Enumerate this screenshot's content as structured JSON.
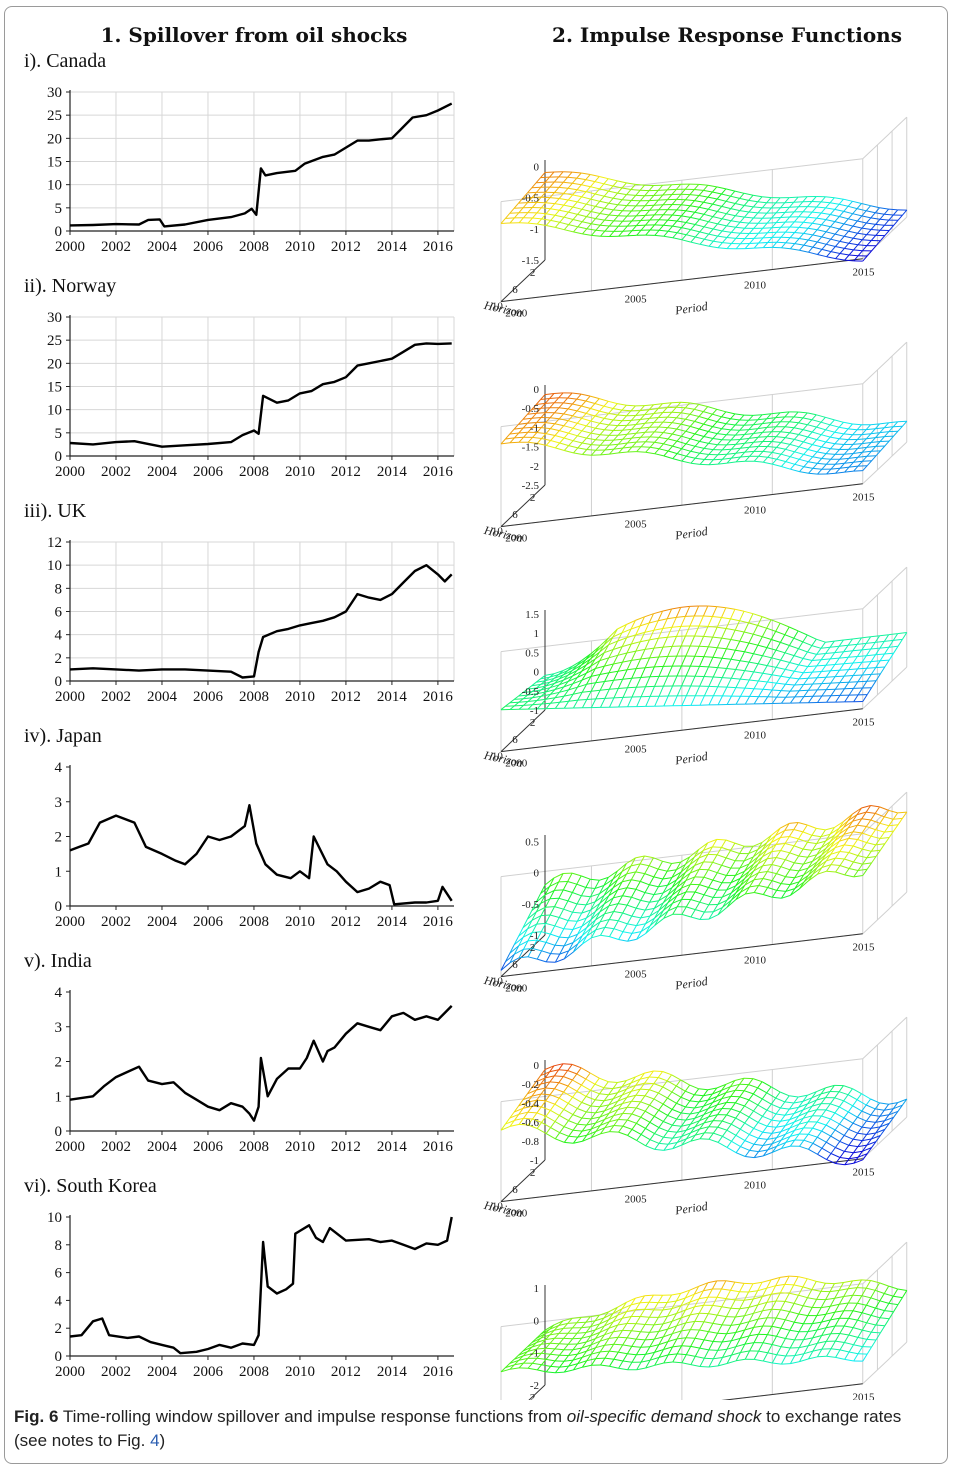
{
  "columns": {
    "left_title": "1. Spillover from oil shocks",
    "right_title": "2. Impulse Response Functions"
  },
  "caption": {
    "label": "Fig. 6",
    "text_before": "Time-rolling window spillover and impulse response functions from ",
    "emphasis": "oil-specific demand shock",
    "text_middle": " to exchange rates (see notes to Fig. ",
    "ref": "4",
    "text_after": ")"
  },
  "surface_axes": {
    "horizon_label": "Horizon",
    "period_label": "Period",
    "horizon_ticks": [
      "2",
      "6",
      "10"
    ],
    "period_ticks": [
      "2000",
      "2005",
      "2010",
      "2015"
    ]
  },
  "chart_data": [
    {
      "type": "line",
      "panel": "i). Canada",
      "x_ticks": [
        "2000",
        "2002",
        "2004",
        "2006",
        "2008",
        "2010",
        "2012",
        "2014",
        "2016"
      ],
      "xlim": [
        2000,
        2016.7
      ],
      "ylim": [
        0,
        30
      ],
      "yticks": [
        0,
        5,
        10,
        15,
        20,
        25,
        30
      ],
      "grid": true,
      "x": [
        2000,
        2001,
        2002,
        2003,
        2003.4,
        2003.9,
        2004.1,
        2005,
        2006,
        2007,
        2007.6,
        2007.9,
        2008.1,
        2008.3,
        2008.5,
        2009,
        2009.8,
        2010.2,
        2011,
        2011.5,
        2012,
        2012.5,
        2013,
        2013.5,
        2014,
        2014.4,
        2014.9,
        2015.5,
        2016,
        2016.6
      ],
      "y": [
        1.2,
        1.3,
        1.5,
        1.4,
        2.4,
        2.5,
        1.0,
        1.4,
        2.4,
        3.0,
        3.8,
        4.8,
        3.5,
        13.5,
        12.0,
        12.5,
        13.0,
        14.5,
        16.0,
        16.5,
        18.0,
        19.5,
        19.5,
        19.8,
        20.0,
        22.0,
        24.5,
        25.0,
        26.0,
        27.5
      ]
    },
    {
      "type": "line",
      "panel": "ii). Norway",
      "x_ticks": [
        "2000",
        "2002",
        "2004",
        "2006",
        "2008",
        "2010",
        "2012",
        "2014",
        "2016"
      ],
      "xlim": [
        2000,
        2016.7
      ],
      "ylim": [
        0,
        30
      ],
      "yticks": [
        0,
        5,
        10,
        15,
        20,
        25,
        30
      ],
      "grid": true,
      "x": [
        2000,
        2001,
        2002,
        2002.8,
        2003.5,
        2004,
        2005,
        2006,
        2007,
        2007.5,
        2008,
        2008.2,
        2008.4,
        2009,
        2009.5,
        2010,
        2010.5,
        2011,
        2011.5,
        2012,
        2012.5,
        2013,
        2013.5,
        2014,
        2014.5,
        2015,
        2015.5,
        2016,
        2016.6
      ],
      "y": [
        2.8,
        2.5,
        3.0,
        3.2,
        2.5,
        2.0,
        2.3,
        2.6,
        3.0,
        4.5,
        5.5,
        4.8,
        13.0,
        11.5,
        12.0,
        13.5,
        14.0,
        15.5,
        16.0,
        17.0,
        19.5,
        20.0,
        20.5,
        21.0,
        22.5,
        24.0,
        24.3,
        24.2,
        24.3
      ]
    },
    {
      "type": "line",
      "panel": "iii). UK",
      "x_ticks": [
        "2000",
        "2002",
        "2004",
        "2006",
        "2008",
        "2010",
        "2012",
        "2014",
        "2016"
      ],
      "xlim": [
        2000,
        2016.7
      ],
      "ylim": [
        0,
        12
      ],
      "yticks": [
        0,
        2,
        4,
        6,
        8,
        10,
        12
      ],
      "grid": true,
      "x": [
        2000,
        2001,
        2002,
        2003,
        2004,
        2005,
        2006,
        2007,
        2007.5,
        2008,
        2008.2,
        2008.4,
        2009,
        2009.5,
        2010,
        2010.5,
        2011,
        2011.5,
        2012,
        2012.5,
        2013,
        2013.5,
        2014,
        2014.5,
        2015,
        2015.5,
        2016,
        2016.3,
        2016.6
      ],
      "y": [
        1.0,
        1.1,
        1.0,
        0.9,
        1.0,
        1.0,
        0.9,
        0.8,
        0.3,
        0.4,
        2.5,
        3.8,
        4.3,
        4.5,
        4.8,
        5.0,
        5.2,
        5.5,
        6.0,
        7.5,
        7.2,
        7.0,
        7.5,
        8.5,
        9.5,
        10.0,
        9.2,
        8.6,
        9.2
      ]
    },
    {
      "type": "line",
      "panel": "iv). Japan",
      "x_ticks": [
        "2000",
        "2002",
        "2004",
        "2006",
        "2008",
        "2010",
        "2012",
        "2014",
        "2016"
      ],
      "xlim": [
        2000,
        2016.7
      ],
      "ylim": [
        0,
        4
      ],
      "yticks": [
        0,
        1,
        2,
        3,
        4
      ],
      "grid": false,
      "x": [
        2000,
        2000.4,
        2000.8,
        2001.3,
        2002,
        2002.8,
        2003.3,
        2004,
        2004.6,
        2005,
        2005.5,
        2006,
        2006.5,
        2007,
        2007.6,
        2007.8,
        2008.1,
        2008.5,
        2009,
        2009.6,
        2010,
        2010.4,
        2010.6,
        2011.2,
        2011.6,
        2012,
        2012.5,
        2013,
        2013.5,
        2013.9,
        2014.1,
        2015,
        2015.5,
        2016,
        2016.2,
        2016.6
      ],
      "y": [
        1.6,
        1.7,
        1.8,
        2.4,
        2.6,
        2.4,
        1.7,
        1.5,
        1.3,
        1.2,
        1.5,
        2.0,
        1.9,
        2.0,
        2.3,
        2.9,
        1.8,
        1.2,
        0.9,
        0.8,
        1.0,
        0.8,
        2.0,
        1.2,
        1.0,
        0.7,
        0.4,
        0.5,
        0.7,
        0.6,
        0.05,
        0.1,
        0.1,
        0.15,
        0.55,
        0.15
      ]
    },
    {
      "type": "line",
      "panel": "v). India",
      "x_ticks": [
        "2000",
        "2002",
        "2004",
        "2006",
        "2008",
        "2010",
        "2012",
        "2014",
        "2016"
      ],
      "xlim": [
        2000,
        2016.7
      ],
      "ylim": [
        0,
        4
      ],
      "yticks": [
        0,
        1,
        2,
        3,
        4
      ],
      "grid": false,
      "x": [
        2000,
        2001,
        2001.5,
        2002,
        2002.5,
        2003,
        2003.4,
        2004,
        2004.5,
        2005,
        2005.5,
        2006,
        2006.5,
        2007,
        2007.5,
        2007.8,
        2008,
        2008.2,
        2008.3,
        2008.6,
        2009,
        2009.5,
        2010,
        2010.3,
        2010.6,
        2011,
        2011.2,
        2011.5,
        2012,
        2012.5,
        2013,
        2013.5,
        2014,
        2014.5,
        2015,
        2015.5,
        2016,
        2016.3,
        2016.6
      ],
      "y": [
        0.9,
        1.0,
        1.3,
        1.55,
        1.7,
        1.85,
        1.45,
        1.35,
        1.4,
        1.1,
        0.9,
        0.7,
        0.6,
        0.8,
        0.7,
        0.5,
        0.3,
        0.7,
        2.1,
        1.0,
        1.5,
        1.8,
        1.8,
        2.1,
        2.6,
        2.0,
        2.3,
        2.4,
        2.8,
        3.1,
        3.0,
        2.9,
        3.3,
        3.4,
        3.2,
        3.3,
        3.2,
        3.4,
        3.6
      ]
    },
    {
      "type": "line",
      "panel": "vi). South Korea",
      "x_ticks": [
        "2000",
        "2002",
        "2004",
        "2006",
        "2008",
        "2010",
        "2012",
        "2014",
        "2016"
      ],
      "xlim": [
        2000,
        2016.7
      ],
      "ylim": [
        0,
        10
      ],
      "yticks": [
        0,
        2,
        4,
        6,
        8,
        10
      ],
      "grid": false,
      "x": [
        2000,
        2000.5,
        2001,
        2001.4,
        2001.7,
        2002.5,
        2003,
        2003.5,
        2004,
        2004.5,
        2004.8,
        2005.5,
        2006,
        2006.5,
        2007,
        2007.5,
        2008,
        2008.2,
        2008.4,
        2008.6,
        2009,
        2009.4,
        2009.7,
        2009.8,
        2010,
        2010.4,
        2010.7,
        2011,
        2011.3,
        2012,
        2013,
        2013.5,
        2014,
        2014.5,
        2015,
        2015.5,
        2016,
        2016.4,
        2016.6
      ],
      "y": [
        1.4,
        1.5,
        2.5,
        2.7,
        1.5,
        1.3,
        1.4,
        1.0,
        0.8,
        0.6,
        0.2,
        0.3,
        0.5,
        0.8,
        0.6,
        0.9,
        0.8,
        1.5,
        8.2,
        5.0,
        4.5,
        4.8,
        5.2,
        8.8,
        9.0,
        9.4,
        8.5,
        8.2,
        9.2,
        8.3,
        8.4,
        8.2,
        8.3,
        8.0,
        7.7,
        8.1,
        8.0,
        8.3,
        10.0
      ]
    }
  ],
  "surfaces": [
    {
      "name": "canada-irf-surface",
      "z_ticks": [
        "0",
        "-0.5",
        "-1",
        "-1.5"
      ],
      "zrange": [
        -1.5,
        0.1
      ]
    },
    {
      "name": "norway-irf-surface",
      "z_ticks": [
        "0",
        "-0.5",
        "-1",
        "-1.5",
        "-2",
        "-2.5"
      ],
      "zrange": [
        -2.5,
        0.1
      ]
    },
    {
      "name": "uk-irf-surface",
      "z_ticks": [
        "1.5",
        "1",
        "0.5",
        "0",
        "-0.5",
        "-1"
      ],
      "zrange": [
        -1.0,
        1.6
      ]
    },
    {
      "name": "japan-irf-surface",
      "z_ticks": [
        "0.5",
        "0",
        "-0.5",
        "-1"
      ],
      "zrange": [
        -1.0,
        0.6
      ]
    },
    {
      "name": "india-irf-surface",
      "z_ticks": [
        "0",
        "-0.2",
        "-0.4",
        "-0.6",
        "-0.8",
        "-1"
      ],
      "zrange": [
        -1.0,
        0.05
      ]
    },
    {
      "name": "korea-irf-surface",
      "z_ticks": [
        "1",
        "0",
        "-1",
        "-2"
      ],
      "zrange": [
        -2.0,
        1.1
      ]
    }
  ]
}
